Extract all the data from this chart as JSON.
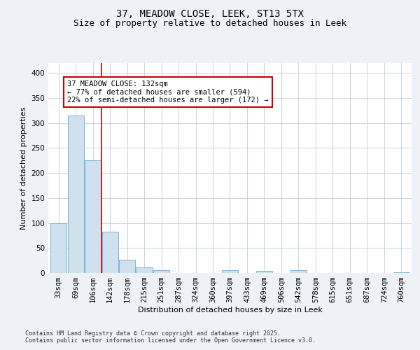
{
  "title_line1": "37, MEADOW CLOSE, LEEK, ST13 5TX",
  "title_line2": "Size of property relative to detached houses in Leek",
  "xlabel": "Distribution of detached houses by size in Leek",
  "ylabel": "Number of detached properties",
  "categories": [
    "33sqm",
    "69sqm",
    "106sqm",
    "142sqm",
    "178sqm",
    "215sqm",
    "251sqm",
    "287sqm",
    "324sqm",
    "360sqm",
    "397sqm",
    "433sqm",
    "469sqm",
    "506sqm",
    "542sqm",
    "578sqm",
    "615sqm",
    "651sqm",
    "687sqm",
    "724sqm",
    "760sqm"
  ],
  "values": [
    100,
    315,
    225,
    83,
    26,
    11,
    5,
    0,
    0,
    0,
    5,
    0,
    4,
    0,
    5,
    0,
    0,
    0,
    0,
    0,
    2
  ],
  "bar_color": "#cfe0ef",
  "bar_edge_color": "#6aaad4",
  "red_line_index": 2,
  "annotation_text": "37 MEADOW CLOSE: 132sqm\n← 77% of detached houses are smaller (594)\n22% of semi-detached houses are larger (172) →",
  "annotation_box_color": "white",
  "annotation_box_edge_color": "#cc0000",
  "ylim": [
    0,
    420
  ],
  "yticks": [
    0,
    50,
    100,
    150,
    200,
    250,
    300,
    350,
    400
  ],
  "footer_line1": "Contains HM Land Registry data © Crown copyright and database right 2025.",
  "footer_line2": "Contains public sector information licensed under the Open Government Licence v3.0.",
  "background_color": "#eef2f7",
  "plot_bg_color": "white",
  "grid_color": "#c8d4e0",
  "title_fontsize": 10,
  "subtitle_fontsize": 9,
  "axis_label_fontsize": 8,
  "tick_fontsize": 7.5,
  "annotation_fontsize": 7.5,
  "footer_fontsize": 6
}
